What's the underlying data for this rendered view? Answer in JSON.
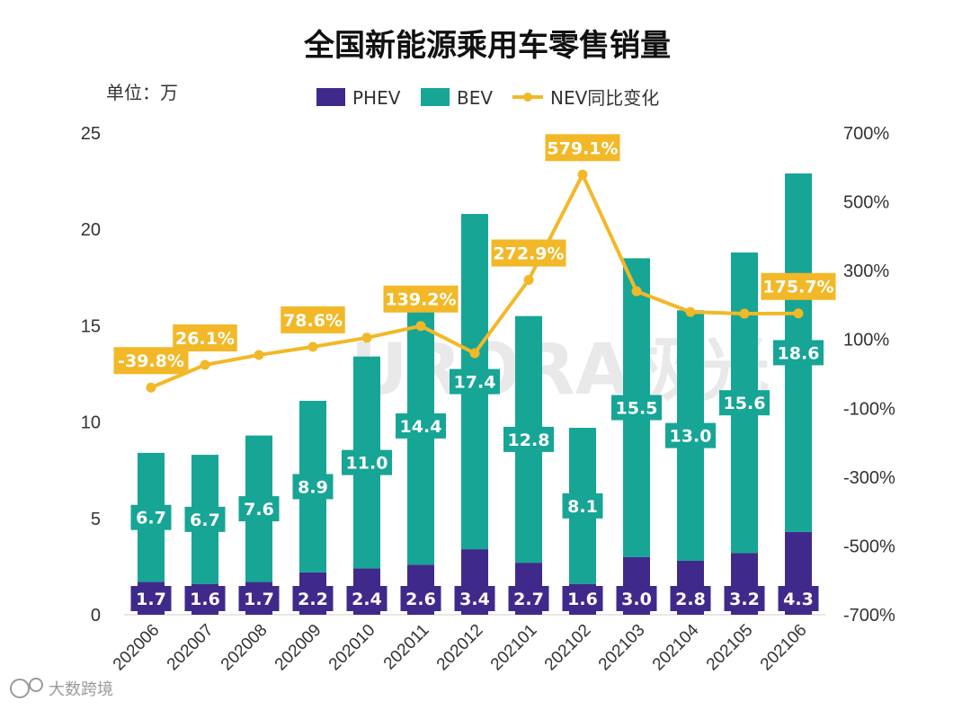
{
  "colors": {
    "phev": "#3f2a8c",
    "bev": "#17a595",
    "nev_line": "#f2b827",
    "label_bg_phev": "#3f2a8c",
    "label_bg_bev": "#17a595"
  },
  "icons": {
    "footer_logo": "weibo-icon"
  },
  "watermark": {
    "text": "URORA极光"
  },
  "footer": {
    "text": "大数跨境"
  },
  "chart_data": {
    "type": "bar",
    "stacked": true,
    "title": "全国新能源乘用车零售销量",
    "unit_label": "单位：万",
    "categories": [
      "202006",
      "202007",
      "202008",
      "202009",
      "202010",
      "202011",
      "202012",
      "202101",
      "202102",
      "202103",
      "202104",
      "202105",
      "202106"
    ],
    "series": [
      {
        "name": "PHEV",
        "type": "bar",
        "values": [
          1.7,
          1.6,
          1.7,
          2.2,
          2.4,
          2.6,
          3.4,
          2.7,
          1.6,
          3.0,
          2.8,
          3.2,
          4.3
        ]
      },
      {
        "name": "BEV",
        "type": "bar",
        "values": [
          6.7,
          6.7,
          7.6,
          8.9,
          11.0,
          14.4,
          17.4,
          12.8,
          8.1,
          15.5,
          13.0,
          15.6,
          18.6
        ]
      },
      {
        "name": "NEV同比变化",
        "type": "line",
        "axis": "right",
        "values": [
          -39.8,
          26.1,
          55,
          78.6,
          105,
          139.2,
          60,
          272.9,
          579.1,
          240,
          180,
          175,
          175.7
        ]
      }
    ],
    "line_labels": [
      {
        "index": 0,
        "text": "-39.8%"
      },
      {
        "index": 1,
        "text": "26.1%"
      },
      {
        "index": 3,
        "text": "78.6%"
      },
      {
        "index": 5,
        "text": "139.2%"
      },
      {
        "index": 7,
        "text": "272.9%"
      },
      {
        "index": 8,
        "text": "579.1%"
      },
      {
        "index": 12,
        "text": "175.7%"
      }
    ],
    "legend": [
      "PHEV",
      "BEV",
      "NEV同比变化"
    ],
    "legend_position": "top",
    "y_left": {
      "min": 0,
      "max": 25,
      "ticks": [
        "0",
        "5",
        "10",
        "15",
        "20",
        "25"
      ]
    },
    "y_right": {
      "min": -700,
      "max": 700,
      "ticks": [
        "-700%",
        "-500%",
        "-300%",
        "-100%",
        "100%",
        "300%",
        "500%",
        "700%"
      ]
    },
    "grid": false
  }
}
